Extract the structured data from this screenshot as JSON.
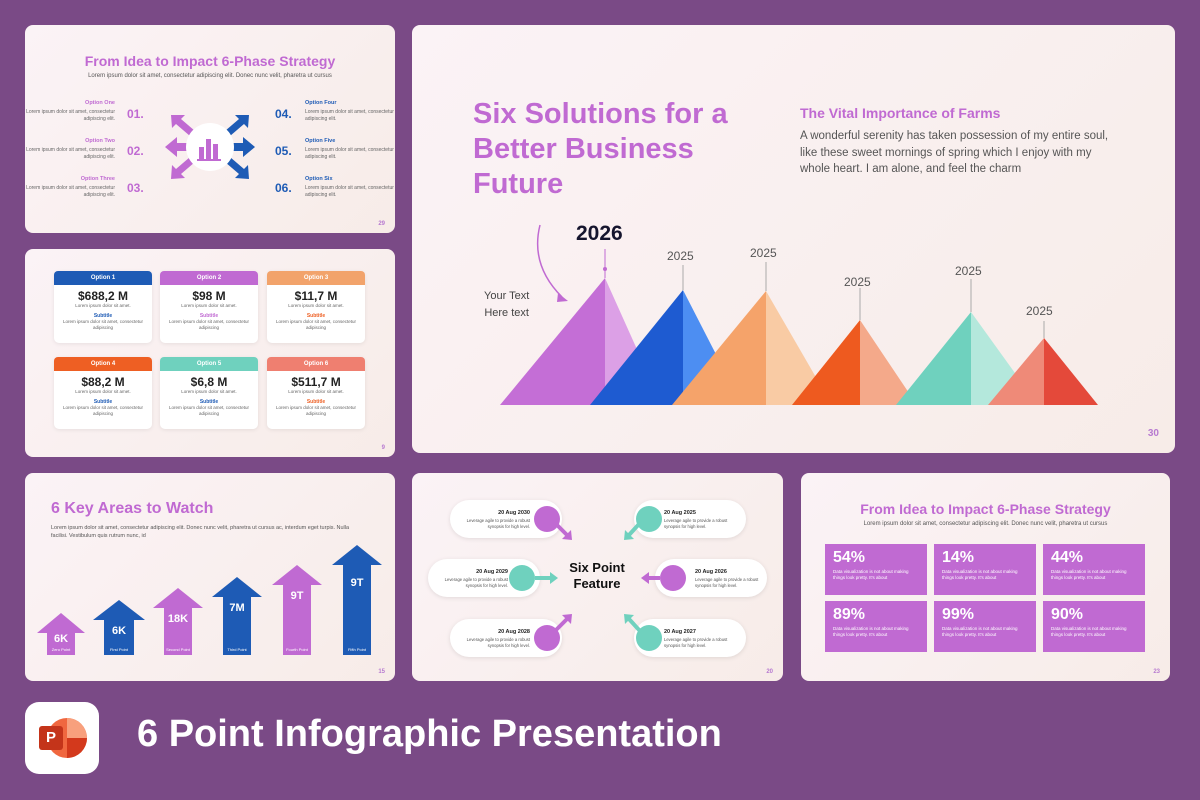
{
  "slide1": {
    "title": "From Idea to Impact 6-Phase Strategy",
    "subtitle": "Lorem ipsum dolor sit amet, consectetur adipiscing elit. Donec nunc velit, pharetra ut cursus",
    "options": [
      {
        "name": "Option One",
        "num": "01.",
        "text": "Lorem ipsum dolor sit amet, consectetur adipiscing elit."
      },
      {
        "name": "Option Two",
        "num": "02.",
        "text": "Lorem ipsum dolor sit amet, consectetur adipiscing elit."
      },
      {
        "name": "Option Three",
        "num": "03.",
        "text": "Lorem ipsum dolor sit amet, consectetur adipiscing elit."
      },
      {
        "name": "Option Four",
        "num": "04.",
        "text": "Lorem ipsum dolor sit amet, consectetur adipiscing elit."
      },
      {
        "name": "Option Five",
        "num": "05.",
        "text": "Lorem ipsum dolor sit amet, consectetur adipiscing elit."
      },
      {
        "name": "Option Six",
        "num": "06.",
        "text": "Lorem ipsum dolor sit amet, consectetur adipiscing elit."
      }
    ],
    "page": "29"
  },
  "slide2": {
    "cards": [
      {
        "label": "Option 1",
        "value": "$688,2 M",
        "text": "Lorem ipsum dolor sit amet.",
        "subtitle": "Subtitle",
        "text2": "Lorem ipsum dolor sit amet, consectetur adipiscing",
        "color": "#1e5bb5"
      },
      {
        "label": "Option 2",
        "value": "$98 M",
        "text": "Lorem ipsum dolor sit amet.",
        "subtitle": "Subtitle",
        "text2": "Lorem ipsum dolor sit amet, consectetur adipiscing",
        "color": "#c06ad2"
      },
      {
        "label": "Option 3",
        "value": "$11,7 M",
        "text": "Lorem ipsum dolor sit amet.",
        "subtitle": "Subtitle",
        "text2": "Lorem ipsum dolor sit amet, consectetur adipiscing",
        "color": "#f2a36b"
      },
      {
        "label": "Option 4",
        "value": "$88,2 M",
        "text": "Lorem ipsum dolor sit amet.",
        "subtitle": "Subtitle",
        "text2": "Lorem ipsum dolor sit amet, consectetur adipiscing",
        "color": "#ee5f23"
      },
      {
        "label": "Option 5",
        "value": "$6,8 M",
        "text": "Lorem ipsum dolor sit amet.",
        "subtitle": "Subtitle",
        "text2": "Lorem ipsum dolor sit amet, consectetur adipiscing",
        "color": "#6fd1be"
      },
      {
        "label": "Option 6",
        "value": "$511,7 M",
        "text": "Lorem ipsum dolor sit amet.",
        "subtitle": "Subtitle",
        "text2": "Lorem ipsum dolor sit amet, consectetur adipiscing",
        "color": "#ef7f70"
      }
    ],
    "page": "9"
  },
  "slide3": {
    "title": "Six Solutions for a Better Business Future",
    "feature_title": "The Vital Importance of Farms",
    "feature_body": "A wonderful serenity has taken possession of my entire soul, like these sweet mornings of spring which I enjoy with my whole heart. I am alone, and feel the charm",
    "your_text": "Your Text",
    "here_text": "Here text",
    "years": [
      "2026",
      "2025",
      "2025",
      "2025",
      "2025",
      "2025"
    ],
    "colors": [
      "#c46ed6",
      "#1e5bd1",
      "#f5a36a",
      "#ee5a1f",
      "#6fd1be",
      "#e4493a"
    ],
    "page": "30"
  },
  "slide4": {
    "title": "6 Key Areas to Watch",
    "subtitle": "Lorem ipsum dolor sit amet, consectetur adipiscing elit. Donec nunc velit, pharetra ut cursus ac, interdum eget turpis. Nulla facilisi. Vestibulum quis rutrum nunc, id",
    "arrows": [
      {
        "value": "6K",
        "label": "Zero Point",
        "color": "#c06ad2"
      },
      {
        "value": "6K",
        "label": "First Point",
        "color": "#1e5bb5"
      },
      {
        "value": "18K",
        "label": "Second Point",
        "color": "#c06ad2"
      },
      {
        "value": "7M",
        "label": "Third Point",
        "color": "#1e5bb5"
      },
      {
        "value": "9T",
        "label": "Fourth Point",
        "color": "#c06ad2"
      },
      {
        "value": "9T",
        "label": "Fifth Point",
        "color": "#1e5bb5"
      }
    ],
    "page": "15"
  },
  "slide5": {
    "feature": "Six Point Feature",
    "items": [
      {
        "date": "20 Aug 2030",
        "text": "Leverage agile to provide a robust synopsis for high level."
      },
      {
        "date": "20 Aug 2029",
        "text": "Leverage agile to provide a robust synopsis for high level."
      },
      {
        "date": "20 Aug 2028",
        "text": "Leverage agile to provide a robust synopsis for high level."
      },
      {
        "date": "20 Aug 2025",
        "text": "Leverage agile to provide a robust synopsis for high level."
      },
      {
        "date": "20 Aug 2026",
        "text": "Leverage agile to provide a robust synopsis for high level."
      },
      {
        "date": "20 Aug 2027",
        "text": "Leverage agile to provide a robust synopsis for high level."
      }
    ],
    "page": "20"
  },
  "slide6": {
    "title": "From Idea to Impact 6-Phase Strategy",
    "subtitle": "Lorem ipsum dolor sit amet, consectetur adipiscing elit. Donec nunc velit, pharetra ut cursus",
    "stats": [
      {
        "value": "54%",
        "text": "Data visualization is not about making things look pretty. It's about"
      },
      {
        "value": "14%",
        "text": "Data visualization is not about making things look pretty. It's about"
      },
      {
        "value": "44%",
        "text": "Data visualization is not about making things look pretty. It's about"
      },
      {
        "value": "89%",
        "text": "Data visualization is not about making things look pretty. It's about"
      },
      {
        "value": "99%",
        "text": "Data visualization is not about making things look pretty. It's about"
      },
      {
        "value": "90%",
        "text": "Data visualization is not about making things look pretty. It's about"
      }
    ],
    "page": "23"
  },
  "footer": {
    "title": "6 Point Infographic Presentation",
    "logo_letter": "P"
  }
}
